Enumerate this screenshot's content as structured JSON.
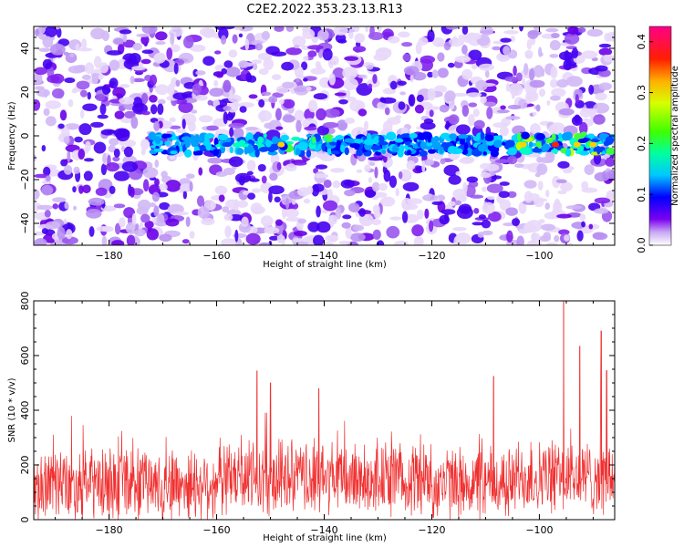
{
  "title": "C2E2.2022.353.23.13.R13",
  "chart_data": [
    {
      "type": "heatmap",
      "xlabel": "Height of straight line (km)",
      "ylabel": "Frequency (Hz)",
      "xlim": [
        -194,
        -86
      ],
      "ylim": [
        -50,
        50
      ],
      "xticks": [
        -180,
        -160,
        -140,
        -120,
        -100
      ],
      "yticks": [
        -40,
        -20,
        0,
        20,
        40
      ],
      "colorbar": {
        "label": "Normalized spectral amplitude",
        "range": [
          0,
          0.43
        ],
        "ticks": [
          "0.0",
          "0.1",
          "0.2",
          "0.3",
          "0.4"
        ],
        "tick_values": [
          0.0,
          0.1,
          0.2,
          0.3,
          0.4
        ]
      },
      "signal_band": {
        "frequency_hz": -4,
        "x_range": [
          -172,
          -86
        ],
        "peak_amplitude": 0.35,
        "peak_height_km": -97
      }
    },
    {
      "type": "line",
      "xlabel": "Height of straight line (km)",
      "ylabel": "SNR (10 * v/v)",
      "xlim": [
        -194,
        -86
      ],
      "ylim": [
        0,
        800
      ],
      "xticks": [
        -180,
        -160,
        -140,
        -120,
        -100
      ],
      "yticks": [
        0,
        200,
        400,
        600,
        800
      ],
      "series": [
        {
          "color": "#f03030",
          "baseline": 130,
          "noise_band": [
            40,
            300
          ],
          "peaks": [
            {
              "x": -152.5,
              "y": 545
            },
            {
              "x": -150,
              "y": 500
            },
            {
              "x": -141,
              "y": 480
            },
            {
              "x": -108.5,
              "y": 525
            },
            {
              "x": -95.5,
              "y": 800
            },
            {
              "x": -92.5,
              "y": 635
            },
            {
              "x": -88.5,
              "y": 690
            },
            {
              "x": -87.5,
              "y": 545
            }
          ]
        }
      ]
    }
  ],
  "colors": {
    "line": "#f03030",
    "background": "#ffffff",
    "axis": "#000000"
  }
}
